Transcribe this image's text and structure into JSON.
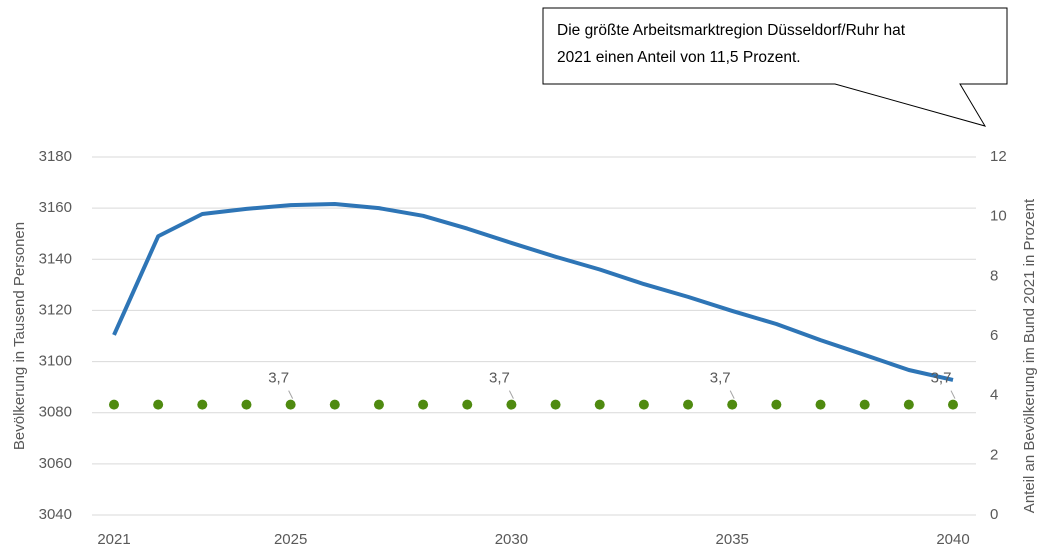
{
  "chart_data": {
    "type": "line",
    "annotation": [
      "Die größte Arbeitsmarktregion Düsseldorf/Ruhr hat",
      "2021 einen Anteil von 11,5 Prozent."
    ],
    "y_label": "Bevölkerung in Tausend Personen",
    "y2_label": "Anteil an Bevölkerung im Bund 2021 in Prozent",
    "x": [
      2021,
      2022,
      2023,
      2024,
      2025,
      2026,
      2027,
      2028,
      2029,
      2030,
      2031,
      2032,
      2033,
      2034,
      2035,
      2036,
      2037,
      2038,
      2039,
      2040
    ],
    "xlim": [
      2021,
      2040
    ],
    "xticks": [
      2021,
      2025,
      2030,
      2035,
      2040
    ],
    "ylim": [
      3040,
      3180
    ],
    "yticks": [
      3040,
      3060,
      3080,
      3100,
      3120,
      3140,
      3160,
      3180
    ],
    "y2lim": [
      0,
      12
    ],
    "y2ticks": [
      0,
      2,
      4,
      6,
      8,
      10,
      12
    ],
    "grid": true,
    "series": [
      {
        "type": "line",
        "color": "#2e75b6",
        "values": [
          3110.4,
          3149,
          3157.7,
          3159.7,
          3161.2,
          3161.6,
          3160,
          3157,
          3152,
          3146.4,
          3141,
          3136,
          3130.3,
          3125.3,
          3119.8,
          3114.7,
          3108.4,
          3102.6,
          3096.7,
          3092.8
        ]
      },
      {
        "type": "scatter",
        "axis": "y2",
        "color": "#4f8a10",
        "values": [
          3.7,
          3.7,
          3.7,
          3.7,
          3.7,
          3.7,
          3.7,
          3.7,
          3.7,
          3.7,
          3.7,
          3.7,
          3.7,
          3.7,
          3.7,
          3.7,
          3.7,
          3.7,
          3.7,
          3.7
        ],
        "value_labels": [
          null,
          null,
          null,
          null,
          "3,7",
          null,
          null,
          null,
          null,
          "3,7",
          null,
          null,
          null,
          null,
          "3,7",
          null,
          null,
          null,
          null,
          "3,7"
        ]
      }
    ]
  }
}
